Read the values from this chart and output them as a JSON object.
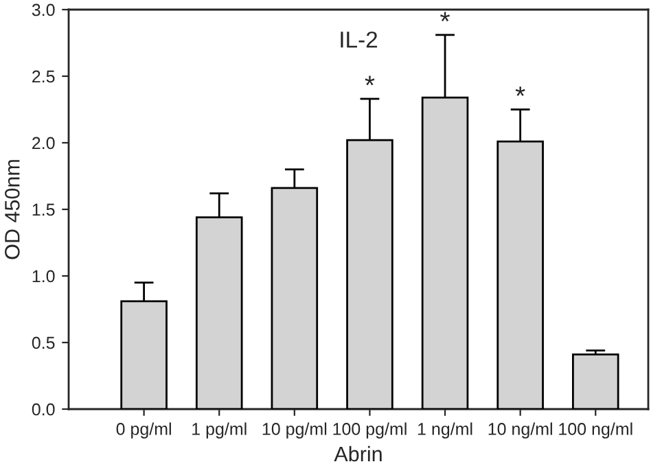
{
  "chart_data": {
    "type": "bar",
    "title": "IL-2",
    "xlabel": "Abrin",
    "ylabel": "OD 450nm",
    "categories": [
      "0 pg/ml",
      "1 pg/ml",
      "10 pg/ml",
      "100 pg/ml",
      "1 ng/ml",
      "10 ng/ml",
      "100 ng/ml"
    ],
    "values": [
      0.81,
      1.44,
      1.66,
      2.02,
      2.34,
      2.01,
      0.41
    ],
    "errors": [
      0.14,
      0.18,
      0.14,
      0.31,
      0.47,
      0.24,
      0.03
    ],
    "color": "#d3d3d3",
    "ylim": [
      0,
      3.0
    ],
    "yticks": [
      {
        "value": 0,
        "label": "0.0"
      },
      0.5,
      {
        "value": 1,
        "label": "1.0"
      },
      1.5,
      {
        "value": 2,
        "label": "2.0"
      },
      2.5,
      {
        "value": 3,
        "label": "3.0"
      }
    ],
    "grid": false,
    "annotations": [
      "*",
      "*",
      "*"
    ]
  }
}
